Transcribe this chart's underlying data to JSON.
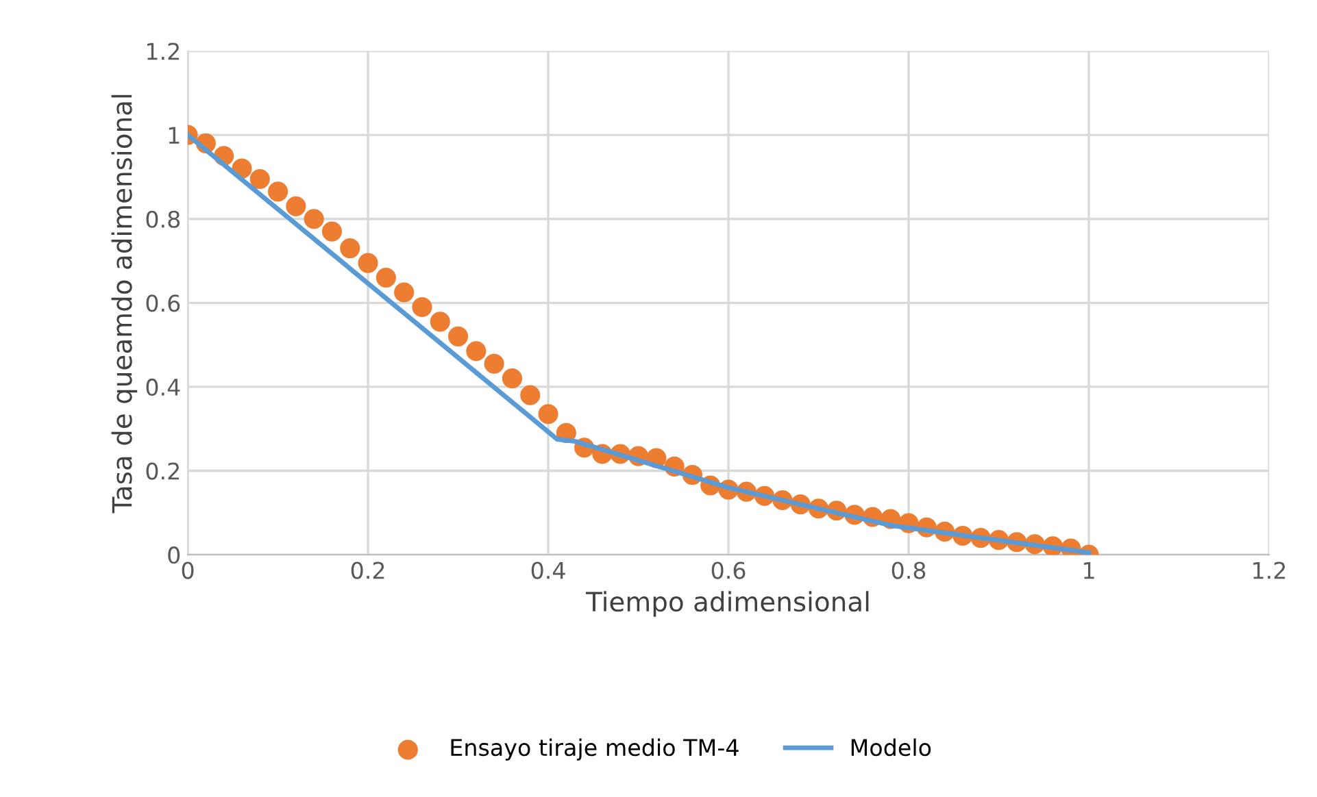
{
  "chart_data": {
    "type": "scatter",
    "xlabel": "Tiempo adimensional",
    "ylabel": "Tasa de queamdo adimensional",
    "xlim": [
      0,
      1.2
    ],
    "xticks": [
      0,
      0.2,
      0.4,
      0.6,
      0.8,
      1,
      1.2
    ],
    "ylim": [
      0,
      1.2
    ],
    "yticks": [
      0,
      0.2,
      0.4,
      0.6,
      0.8,
      1,
      1.2
    ],
    "grid": true,
    "legend": "bottom",
    "series": [
      {
        "name": "Ensayo tiraje medio TM-4",
        "marker": "circle",
        "color": "#ed7d31",
        "x": [
          0,
          0.02,
          0.04,
          0.06,
          0.08,
          0.1,
          0.12,
          0.14,
          0.16,
          0.18,
          0.2,
          0.22,
          0.24,
          0.26,
          0.28,
          0.3,
          0.32,
          0.34,
          0.36,
          0.38,
          0.4,
          0.42,
          0.44,
          0.46,
          0.48,
          0.5,
          0.52,
          0.54,
          0.56,
          0.58,
          0.6,
          0.62,
          0.64,
          0.66,
          0.68,
          0.7,
          0.72,
          0.74,
          0.76,
          0.78,
          0.8,
          0.82,
          0.84,
          0.86,
          0.88,
          0.9,
          0.92,
          0.94,
          0.96,
          0.98,
          1.0
        ],
        "values": [
          1.0,
          0.98,
          0.95,
          0.92,
          0.895,
          0.865,
          0.83,
          0.8,
          0.77,
          0.73,
          0.695,
          0.66,
          0.625,
          0.59,
          0.555,
          0.52,
          0.485,
          0.455,
          0.42,
          0.38,
          0.335,
          0.29,
          0.255,
          0.24,
          0.24,
          0.235,
          0.23,
          0.21,
          0.19,
          0.165,
          0.155,
          0.15,
          0.14,
          0.13,
          0.12,
          0.11,
          0.105,
          0.095,
          0.09,
          0.085,
          0.075,
          0.065,
          0.055,
          0.045,
          0.04,
          0.035,
          0.03,
          0.025,
          0.02,
          0.015,
          0.0
        ]
      },
      {
        "name": "Modelo",
        "type": "line",
        "color": "#5b9bd5",
        "line_style": "solid",
        "x": [
          0,
          0.41,
          0.43,
          0.6,
          0.78,
          1.0
        ],
        "values": [
          1.0,
          0.275,
          0.27,
          0.16,
          0.07,
          0.005
        ]
      }
    ]
  }
}
